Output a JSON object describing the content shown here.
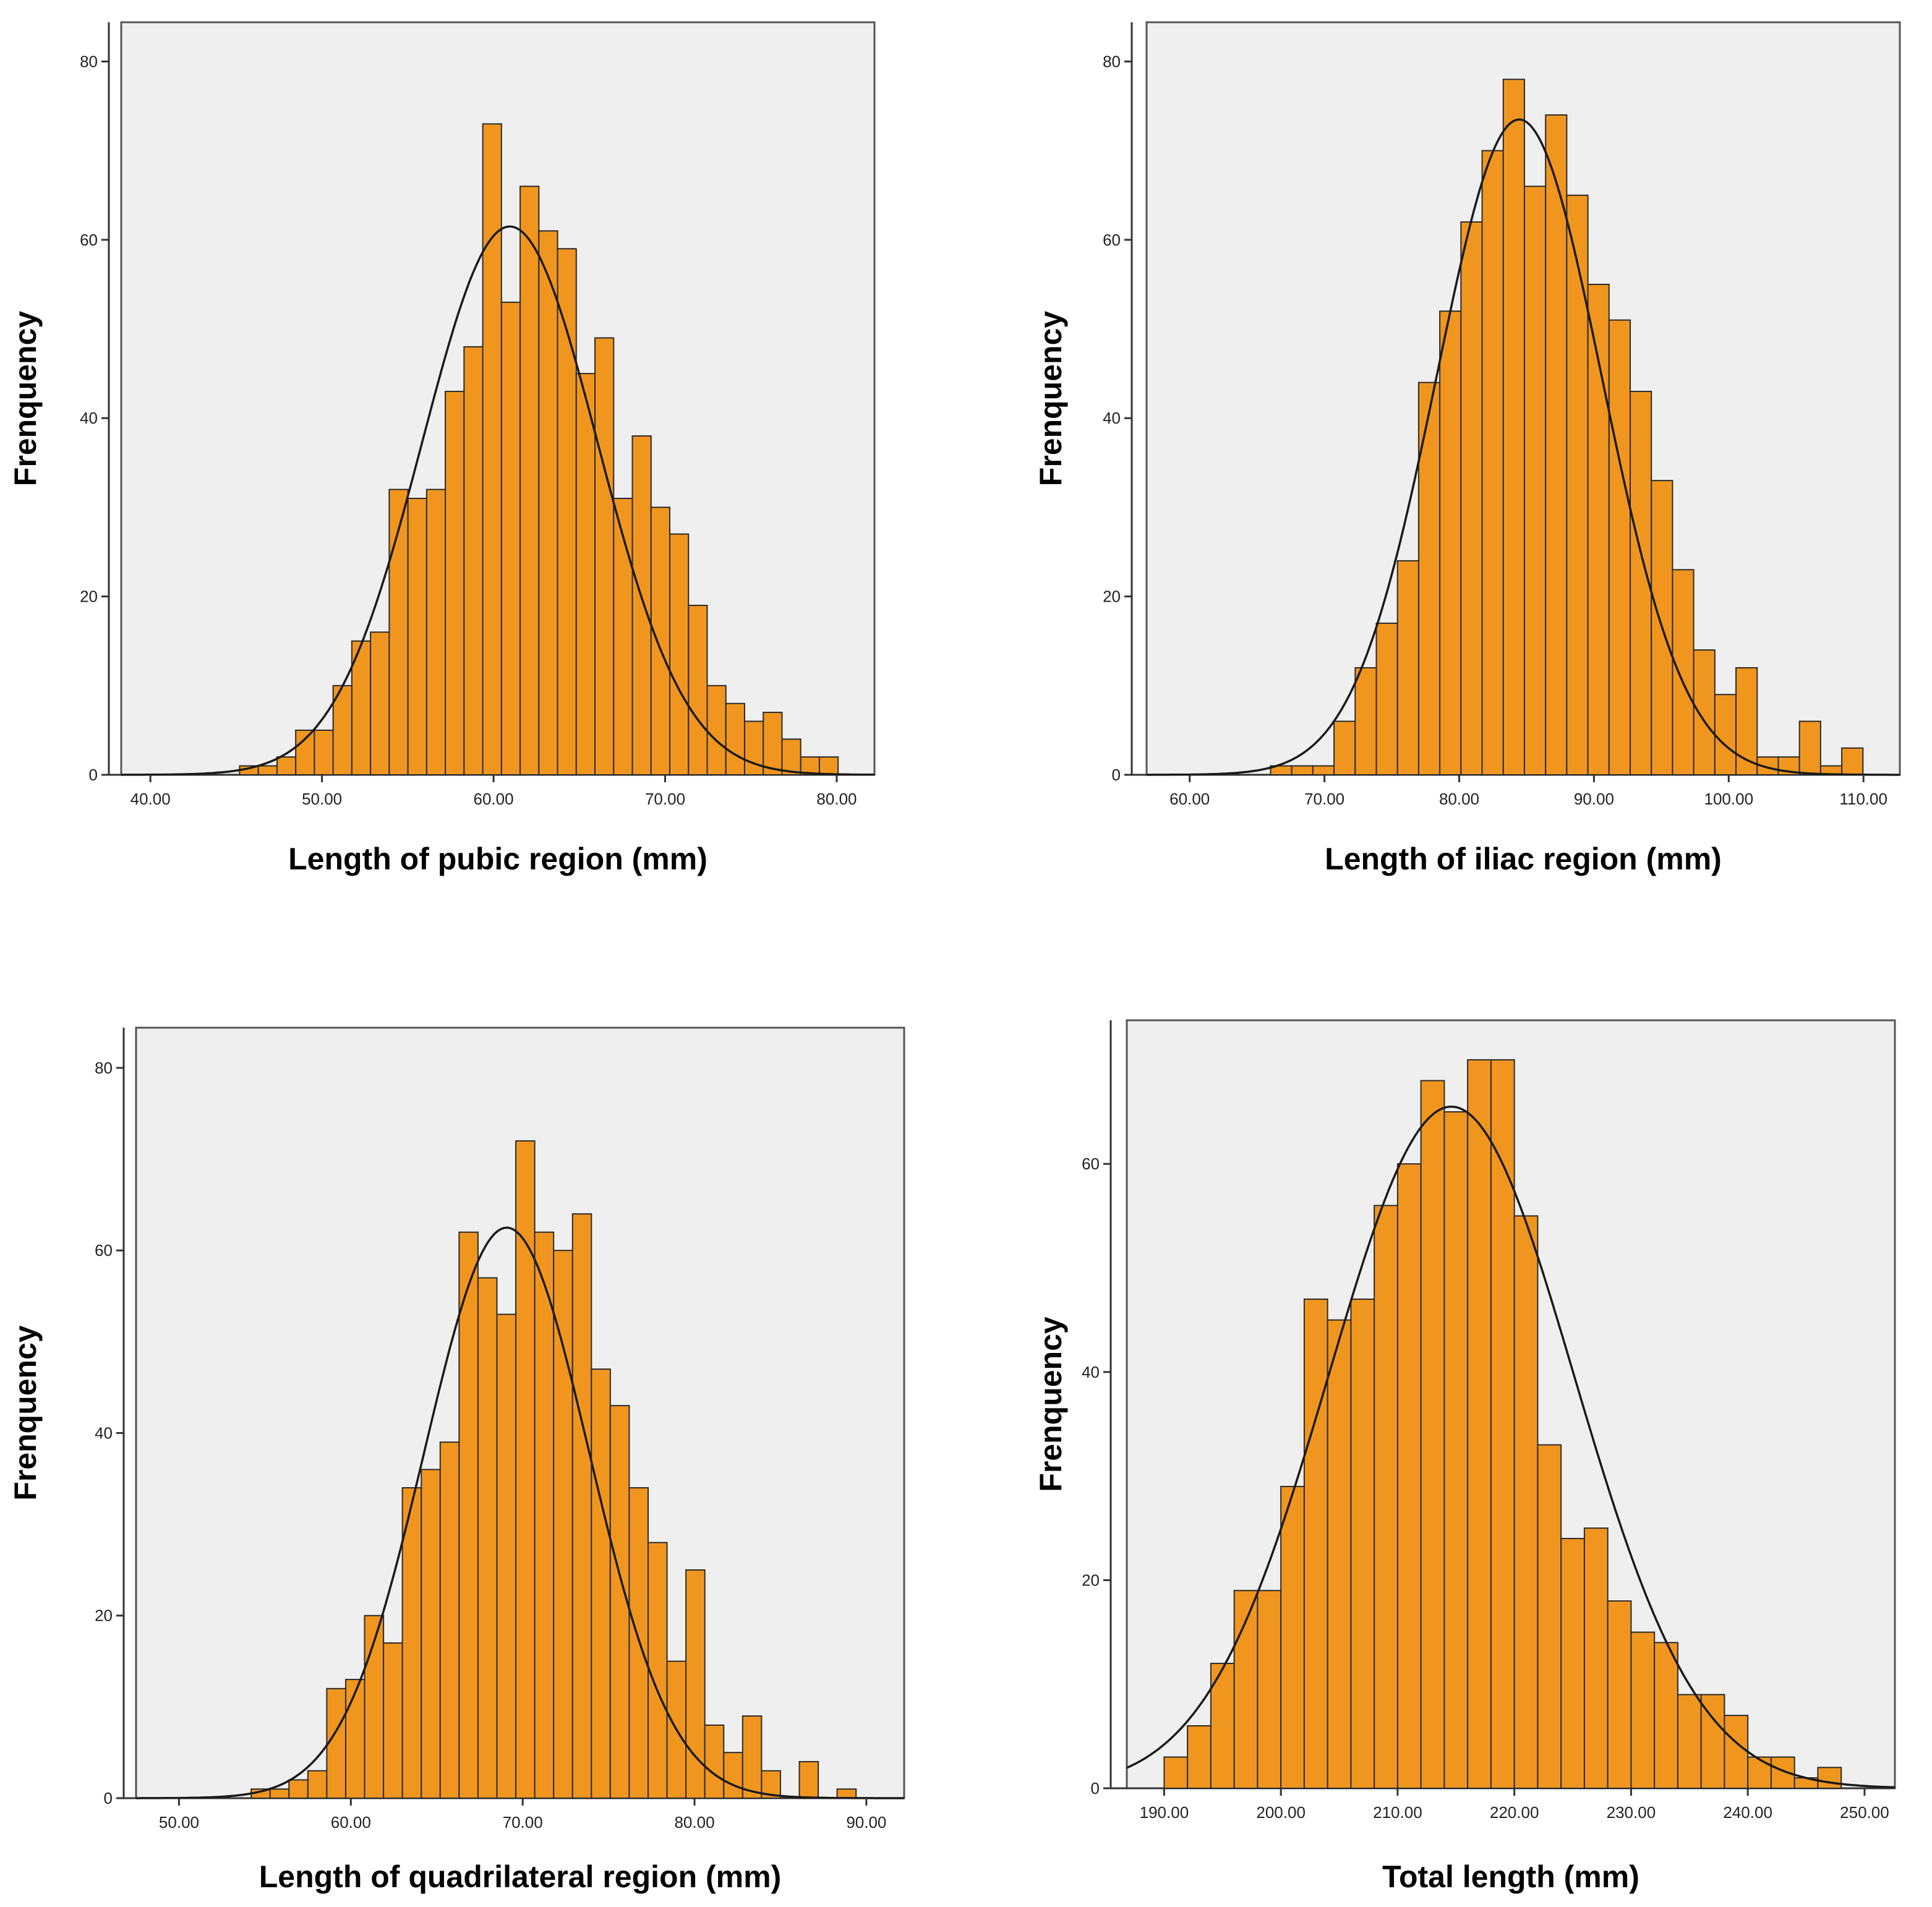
{
  "colors": {
    "bar": "#f0961f",
    "plot_background": "#efefef",
    "curve": "#1a1a1a"
  },
  "chart_data": [
    {
      "type": "bar",
      "title": "",
      "xlabel": "Length of pubic region (mm)",
      "ylabel": "Frenquency",
      "xlim": [
        38.3,
        82.2
      ],
      "ylim": [
        0,
        84.4
      ],
      "x_ticks": [
        "40.00",
        "50.00",
        "60.00",
        "70.00",
        "80.00"
      ],
      "x_tick_values": [
        40,
        50,
        60,
        70,
        80
      ],
      "y_ticks": [
        "0",
        "20",
        "40",
        "60",
        "80"
      ],
      "y_tick_values": [
        0,
        20,
        40,
        60,
        80
      ],
      "bin_start": 45.2,
      "bin_width": 1.09,
      "values": [
        1,
        1,
        2,
        5,
        5,
        10,
        15,
        16,
        32,
        31,
        32,
        43,
        48,
        73,
        53,
        66,
        61,
        59,
        45,
        49,
        31,
        38,
        30,
        27,
        19,
        10,
        8,
        6,
        7,
        4,
        2,
        2
      ],
      "normal_curve": {
        "mean": 60.95,
        "sd": 5.11,
        "peak": 61.5
      }
    },
    {
      "type": "bar",
      "title": "",
      "xlabel": "Length of iliac region (mm)",
      "ylabel": "Frenquency",
      "xlim": [
        56.8,
        112.7
      ],
      "ylim": [
        0,
        84.4
      ],
      "x_ticks": [
        "60.00",
        "70.00",
        "80.00",
        "90.00",
        "100.00",
        "110.00"
      ],
      "x_tick_values": [
        60,
        70,
        80,
        90,
        100,
        110
      ],
      "y_ticks": [
        "0",
        "20",
        "40",
        "60",
        "80"
      ],
      "y_tick_values": [
        0,
        20,
        40,
        60,
        80
      ],
      "bin_start": 66.0,
      "bin_width": 1.57,
      "values": [
        1,
        1,
        1,
        6,
        12,
        17,
        24,
        44,
        52,
        62,
        70,
        78,
        66,
        74,
        65,
        55,
        51,
        43,
        33,
        23,
        14,
        9,
        12,
        2,
        2,
        6,
        1,
        3
      ],
      "normal_curve": {
        "mean": 84.45,
        "sd": 6.14,
        "peak": 73.5
      }
    },
    {
      "type": "bar",
      "title": "",
      "xlabel": "Length of quadrilateral region (mm)",
      "ylabel": "Frenquency",
      "xlim": [
        47.5,
        92.2
      ],
      "ylim": [
        0,
        84.4
      ],
      "x_ticks": [
        "50.00",
        "60.00",
        "70.00",
        "80.00",
        "90.00"
      ],
      "x_tick_values": [
        50,
        60,
        70,
        80,
        90
      ],
      "y_ticks": [
        "0",
        "20",
        "40",
        "60",
        "80"
      ],
      "y_tick_values": [
        0,
        20,
        40,
        60,
        80
      ],
      "bin_start": 54.2,
      "bin_width": 1.1,
      "values": [
        1,
        1,
        2,
        3,
        12,
        13,
        20,
        17,
        34,
        36,
        39,
        62,
        57,
        53,
        72,
        62,
        60,
        64,
        47,
        43,
        34,
        28,
        15,
        25,
        8,
        5,
        9,
        3,
        0,
        4,
        0,
        1
      ],
      "normal_curve": {
        "mean": 69.07,
        "sd": 4.8,
        "peak": 62.5
      }
    },
    {
      "type": "bar",
      "title": "",
      "xlabel": "Total length (mm)",
      "ylabel": "Frenquency",
      "xlim": [
        186.8,
        252.6
      ],
      "ylim": [
        0,
        73.8
      ],
      "x_ticks": [
        "190.00",
        "200.00",
        "210.00",
        "220.00",
        "230.00",
        "240.00",
        "250.00"
      ],
      "x_tick_values": [
        190,
        200,
        210,
        220,
        230,
        240,
        250
      ],
      "y_ticks": [
        "0",
        "20",
        "40",
        "60"
      ],
      "y_tick_values": [
        0,
        20,
        40,
        60
      ],
      "bin_start": 190.0,
      "bin_width": 2.0,
      "values": [
        3,
        6,
        12,
        19,
        19,
        29,
        47,
        45,
        47,
        56,
        60,
        68,
        65,
        70,
        70,
        55,
        33,
        24,
        25,
        18,
        15,
        14,
        9,
        9,
        7,
        3,
        3,
        1,
        2
      ],
      "normal_curve": {
        "mean": 214.6,
        "sd": 10.5,
        "peak": 65.5
      }
    }
  ]
}
